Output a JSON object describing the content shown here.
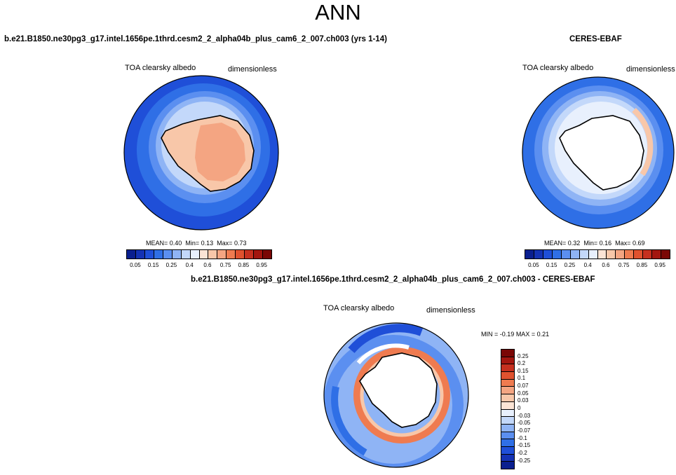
{
  "figure": {
    "title": "ANN"
  },
  "colors": {
    "ramp": [
      "#0a1f8f",
      "#1432b4",
      "#1f4fd8",
      "#2f6fe6",
      "#5b8ff0",
      "#8fb4f5",
      "#c3d8fa",
      "#e8f0fd",
      "#fbe4d5",
      "#f8c7a9",
      "#f4a582",
      "#ef7b50",
      "#e0522f",
      "#c6301f",
      "#a3160f",
      "#7a0705"
    ],
    "land": "#ffffff",
    "coast": "#000000"
  },
  "panels": {
    "model": {
      "title": "b.e21.B1850.ne30pg3_g17.intel.1656pe.1thrd.cesm2_2_alpha04b_plus_cam6_2_007.ch003 (yrs 1-14)",
      "variable": "TOA clearsky albedo",
      "units": "dimensionless",
      "stats": {
        "mean_label": "MEAN=",
        "mean": "0.40",
        "min_label": "Min=",
        "min": "0.13",
        "max_label": "Max=",
        "max": "0.73"
      },
      "colorbar_ticks": [
        "0.05",
        "0.15",
        "0.25",
        "0.4",
        "0.6",
        "0.75",
        "0.85",
        "0.95"
      ]
    },
    "obs": {
      "title": "CERES-EBAF",
      "variable": "TOA clearsky albedo",
      "units": "dimensionless",
      "stats": {
        "mean_label": "MEAN=",
        "mean": "0.32",
        "min_label": "Min=",
        "min": "0.16",
        "max_label": "Max=",
        "max": "0.69"
      },
      "colorbar_ticks": [
        "0.05",
        "0.15",
        "0.25",
        "0.4",
        "0.6",
        "0.75",
        "0.85",
        "0.95"
      ]
    },
    "diff": {
      "title": "b.e21.B1850.ne30pg3_g17.intel.1656pe.1thrd.cesm2_2_alpha04b_plus_cam6_2_007.ch003 - CERES-EBAF",
      "variable": "TOA clearsky albedo",
      "units": "dimensionless",
      "stats": {
        "min_label": "MIN =",
        "min": "-0.19",
        "max_label": "MAX =",
        "max": "0.21"
      },
      "colorbar_ticks": [
        "0.25",
        "0.2",
        "0.15",
        "0.1",
        "0.07",
        "0.05",
        "0.03",
        "0",
        "-0.03",
        "-0.05",
        "-0.07",
        "-0.1",
        "-0.15",
        "-0.2",
        "-0.25"
      ]
    }
  }
}
